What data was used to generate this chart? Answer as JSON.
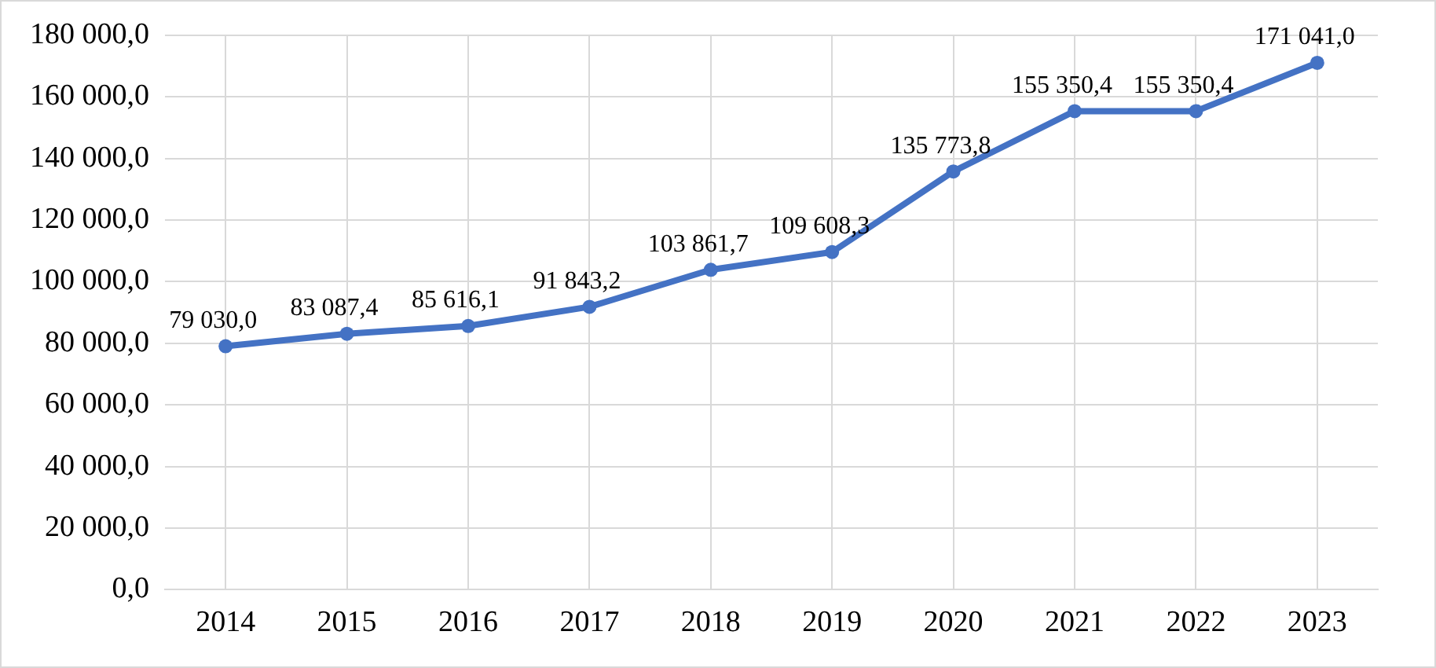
{
  "chart_data": {
    "type": "line",
    "categories": [
      "2014",
      "2015",
      "2016",
      "2017",
      "2018",
      "2019",
      "2020",
      "2021",
      "2022",
      "2023"
    ],
    "series": [
      {
        "color": "#4472c4",
        "values": [
          79030.0,
          83087.4,
          85616.1,
          91843.2,
          103861.7,
          109608.3,
          135773.8,
          155350.4,
          155350.4,
          171041.0
        ],
        "value_labels": [
          "79 030,0",
          "83 087,4",
          "85 616,1",
          "91 843,2",
          "103 861,7",
          "109 608,3",
          "135 773,8",
          "155 350,4",
          "155 350,4",
          "171 041,0"
        ]
      }
    ],
    "ylim": [
      0,
      180000
    ],
    "yticks": [
      {
        "value": 0,
        "label": "0,0"
      },
      {
        "value": 20000,
        "label": "20 000,0"
      },
      {
        "value": 40000,
        "label": "40 000,0"
      },
      {
        "value": 60000,
        "label": "60 000,0"
      },
      {
        "value": 80000,
        "label": "80 000,0"
      },
      {
        "value": 100000,
        "label": "100 000,0"
      },
      {
        "value": 120000,
        "label": "120 000,0"
      },
      {
        "value": 140000,
        "label": "140 000,0"
      },
      {
        "value": 160000,
        "label": "160 000,0"
      },
      {
        "value": 180000,
        "label": "180 000,0"
      }
    ],
    "grid": true,
    "legend": false,
    "marker": "circle",
    "line_style": "solid"
  }
}
